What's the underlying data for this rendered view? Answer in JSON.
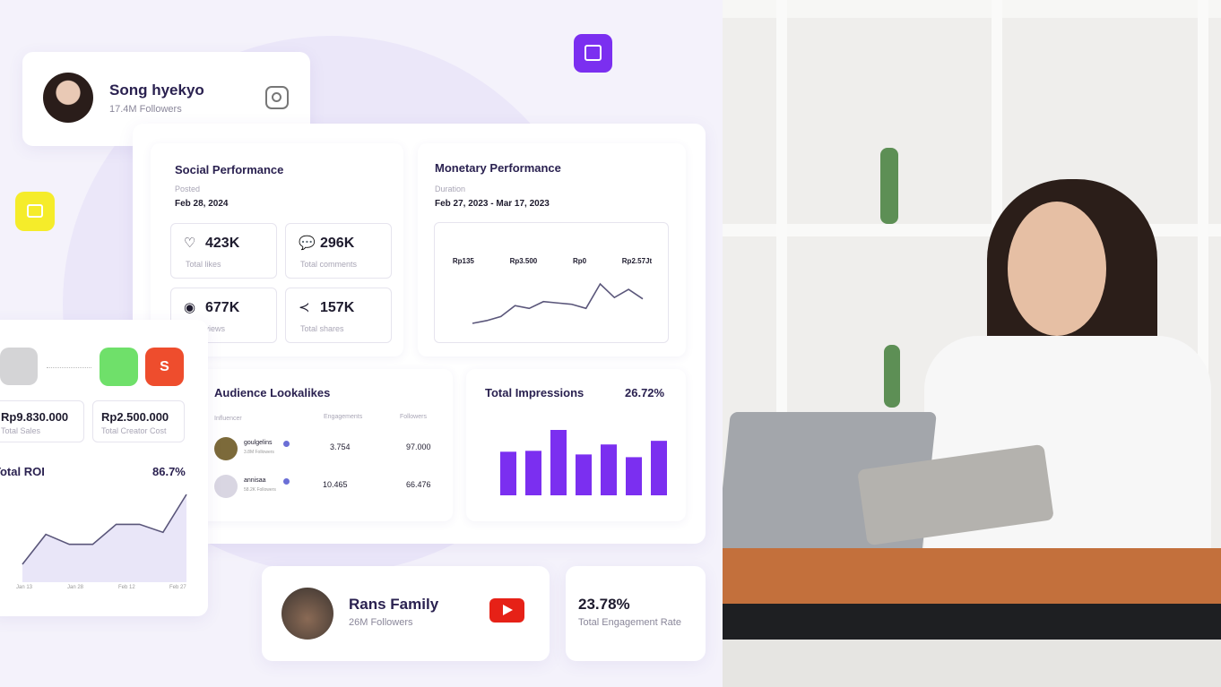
{
  "profile_top": {
    "name": "Song hyekyo",
    "followers": "17.4M Followers",
    "platform_icon": "instagram-icon"
  },
  "social": {
    "title": "Social Performance",
    "date_label": "Posted",
    "date": "Feb 28, 2024",
    "stats": [
      {
        "icon": "heart-icon",
        "value": "423K",
        "label": "Total likes"
      },
      {
        "icon": "comment-icon",
        "value": "296K",
        "label": "Total comments"
      },
      {
        "icon": "eye-icon",
        "value": "677K",
        "label": "Total views"
      },
      {
        "icon": "share-icon",
        "value": "157K",
        "label": "Total shares"
      }
    ]
  },
  "monetary": {
    "title": "Monetary Performance",
    "duration_label": "Duration",
    "duration": "Feb 27, 2023 - Mar 17, 2023",
    "metrics": [
      "Rp135",
      "Rp3.500",
      "Rp0",
      "Rp2.57Jt"
    ],
    "line_values": [
      1,
      3,
      6,
      14,
      12,
      17,
      16,
      15,
      12,
      30,
      20,
      26,
      19
    ]
  },
  "audience": {
    "title": "Audience Lookalikes",
    "columns": [
      "Influencer",
      "Engagements",
      "Followers"
    ],
    "rows": [
      {
        "name": "goulgelins",
        "sub": "3.8M Followers",
        "engagement": "3.754",
        "followers": "97.000"
      },
      {
        "name": "annisaa",
        "sub": "58.2K Followers",
        "engagement": "10.465",
        "followers": "66.476"
      }
    ]
  },
  "impressions": {
    "title": "Total Impressions",
    "value": "26.72%",
    "bars": [
      48,
      49,
      72,
      45,
      56,
      42,
      60
    ]
  },
  "roi": {
    "sales": "Rp9.830.000",
    "sales_label": "Total Sales",
    "cost": "Rp2.500.000",
    "cost_label": "Total Creator Cost",
    "title": "Total ROI",
    "value": "86.7%",
    "x_ticks": [
      "Jan 13",
      "Jan 28",
      "Feb 12",
      "Feb 27"
    ],
    "line_values": [
      1,
      2.5,
      2,
      2,
      3,
      3,
      2.6,
      4.5
    ]
  },
  "profile_bottom": {
    "name": "Rans Family",
    "followers": "26M Followers",
    "platform_icon": "youtube-icon"
  },
  "engagement": {
    "value": "23.78%",
    "label": "Total Engagement Rate"
  },
  "colors": {
    "accent": "#7b2ff0",
    "yellow": "#f5ec2a",
    "tokopedia": "#6fe06a",
    "shopee": "#ee4d2d",
    "youtube": "#e62117"
  }
}
